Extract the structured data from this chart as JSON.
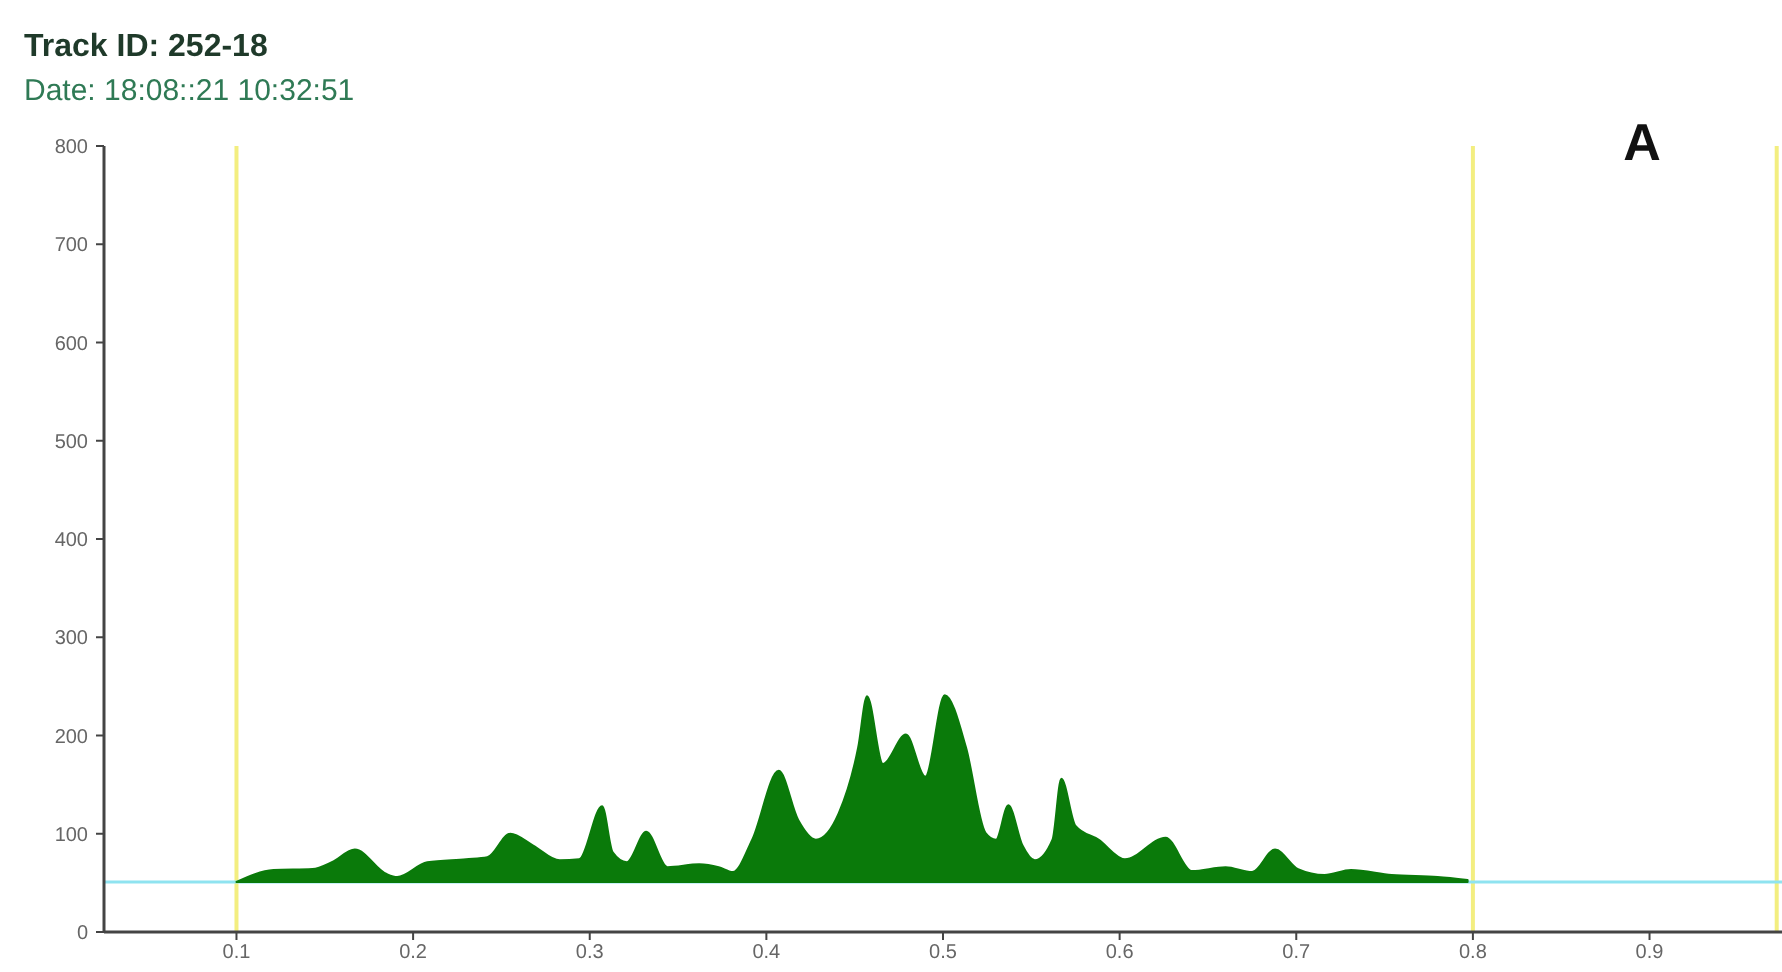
{
  "chart_data": {
    "type": "area",
    "title": "Track ID: 252-18",
    "subtitle": "Date: 18:08::21 10:32:51",
    "annotations": [
      "A"
    ],
    "x": [
      0.1,
      0.121,
      0.143,
      0.154,
      0.167,
      0.185,
      0.191,
      0.208,
      0.23,
      0.242,
      0.255,
      0.268,
      0.283,
      0.294,
      0.307,
      0.313,
      0.321,
      0.332,
      0.344,
      0.362,
      0.373,
      0.381,
      0.392,
      0.407,
      0.418,
      0.428,
      0.441,
      0.452,
      0.457,
      0.466,
      0.479,
      0.49,
      0.501,
      0.513,
      0.524,
      0.53,
      0.537,
      0.545,
      0.552,
      0.562,
      0.567,
      0.575,
      0.588,
      0.603,
      0.626,
      0.641,
      0.66,
      0.675,
      0.688,
      0.701,
      0.716,
      0.731,
      0.754,
      0.78,
      0.797
    ],
    "series": [
      {
        "color": "#0a7a0a",
        "values": [
          51,
          63,
          64,
          71,
          84,
          59,
          56,
          71,
          74,
          76,
          100,
          88,
          73,
          74,
          128,
          81,
          71,
          102,
          66,
          69,
          66,
          61,
          94,
          164,
          114,
          94,
          121,
          188,
          240,
          171,
          201,
          158,
          241,
          188,
          101,
          94,
          129,
          88,
          73,
          94,
          156,
          108,
          94,
          74,
          96,
          62,
          66,
          61,
          84,
          64,
          58,
          63,
          58,
          56,
          53
        ]
      }
    ],
    "xlim": [
      0.025,
      0.975
    ],
    "xticks": [
      0.1,
      0.2,
      0.3,
      0.4,
      0.5,
      0.6,
      0.7,
      0.8,
      0.9
    ],
    "ylim": [
      0,
      800
    ],
    "yticks": [
      0,
      100,
      200,
      300,
      400,
      500,
      600,
      700,
      800
    ],
    "ref_lines": [
      {
        "axis": "y",
        "value": 51,
        "color": "#8fe3f0"
      },
      {
        "axis": "x",
        "value": 0.1,
        "color": "#f3ee80"
      },
      {
        "axis": "x",
        "value": 0.8,
        "color": "#f3ee80"
      },
      {
        "axis": "x",
        "value": 0.972,
        "color": "#f3ee80"
      }
    ],
    "grid": false
  }
}
